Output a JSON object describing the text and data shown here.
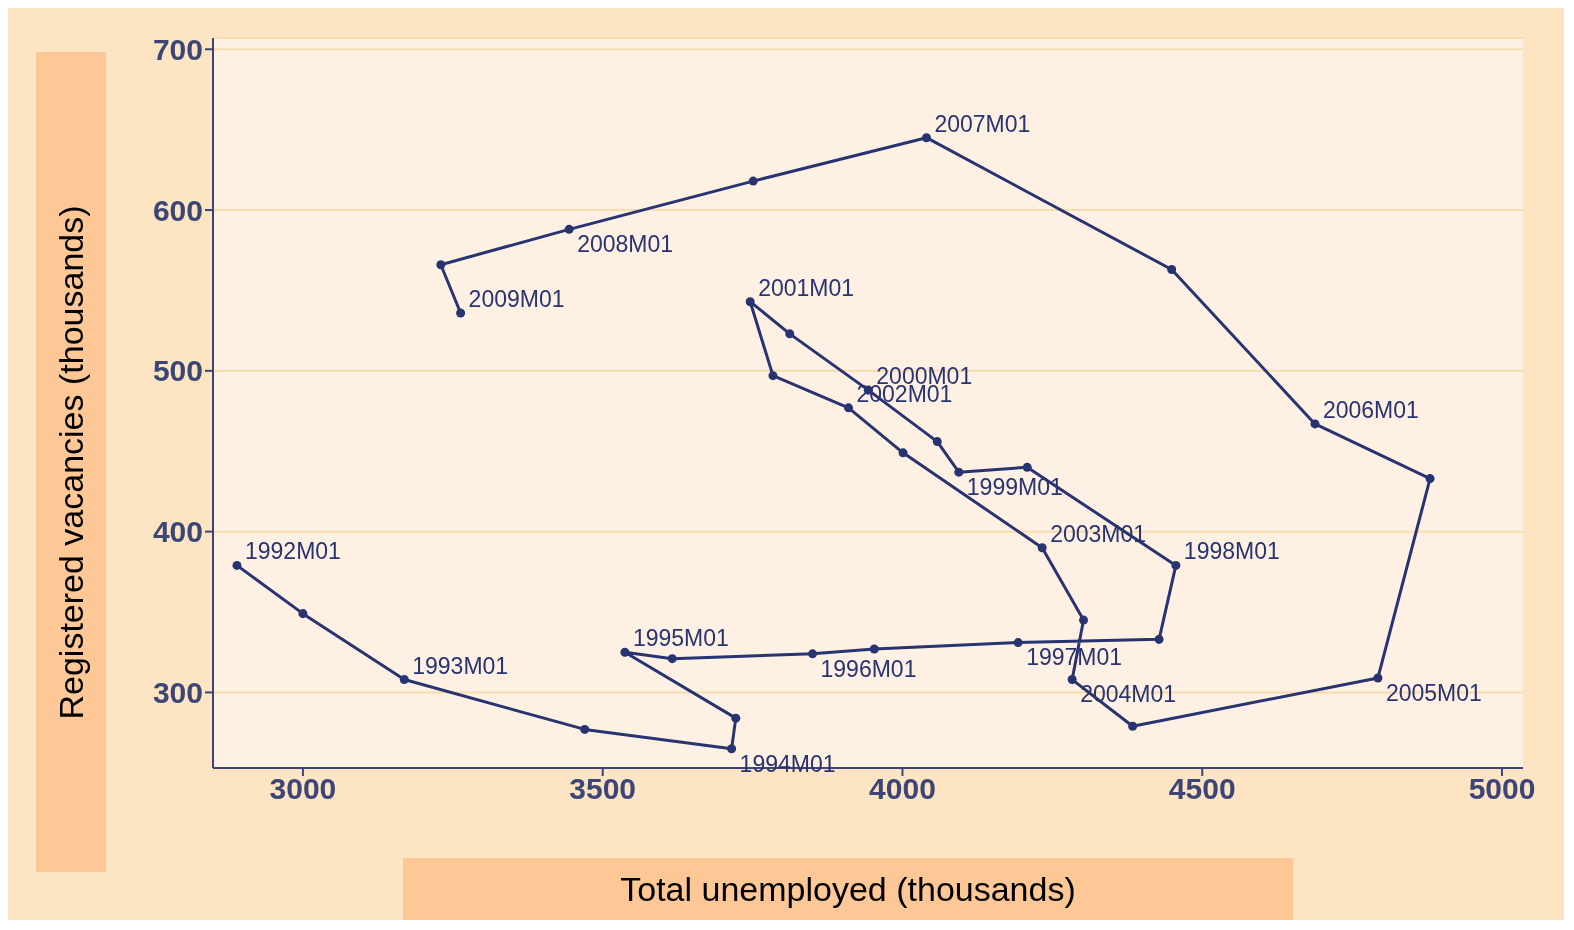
{
  "chart_data": {
    "type": "line",
    "xlabel": "Total unemployed (thousands)",
    "ylabel": "Registered vacancies (thousands)",
    "x": [
      2890,
      3000,
      3169,
      3470,
      3715,
      3722,
      3537,
      3616,
      3850,
      3953,
      4193,
      4428,
      4456,
      4208,
      4094,
      4058,
      3943,
      3812,
      3746,
      3784,
      3910,
      4001,
      4233,
      4302,
      4283,
      4384,
      4793,
      4880,
      4688,
      4449,
      4040,
      3751,
      3444,
      3230,
      3263
    ],
    "values": [
      379,
      349,
      308,
      277,
      265,
      284,
      325,
      321,
      324,
      327,
      331,
      333,
      379,
      440,
      437,
      456,
      488,
      523,
      543,
      497,
      477,
      449,
      390,
      345,
      308,
      279,
      309,
      433,
      467,
      563,
      645,
      618,
      588,
      566,
      536
    ],
    "color": "#283371",
    "marker": "circle",
    "line_style": "solid",
    "xlim": [
      2850,
      5035
    ],
    "ylim": [
      253,
      707
    ],
    "xticks": [
      3000,
      3500,
      4000,
      4500,
      5000
    ],
    "yticks": [
      300,
      400,
      500,
      600,
      700
    ],
    "grid": "y",
    "annotations": [
      {
        "text": "1992M01",
        "x": 2890,
        "y": 379
      },
      {
        "text": "1993M01",
        "x": 3169,
        "y": 308
      },
      {
        "text": "1994M01",
        "x": 3715,
        "y": 265
      },
      {
        "text": "1995M01",
        "x": 3537,
        "y": 325
      },
      {
        "text": "1996M01",
        "x": 3850,
        "y": 324
      },
      {
        "text": "1997M01",
        "x": 4193,
        "y": 331
      },
      {
        "text": "1998M01",
        "x": 4456,
        "y": 379
      },
      {
        "text": "1999M01",
        "x": 4094,
        "y": 437
      },
      {
        "text": "2000M01",
        "x": 3943,
        "y": 488
      },
      {
        "text": "2001M01",
        "x": 3746,
        "y": 543
      },
      {
        "text": "2002M01",
        "x": 3910,
        "y": 477
      },
      {
        "text": "2003M01",
        "x": 4233,
        "y": 390
      },
      {
        "text": "2004M01",
        "x": 4283,
        "y": 308
      },
      {
        "text": "2005M01",
        "x": 4793,
        "y": 309
      },
      {
        "text": "2006M01",
        "x": 4688,
        "y": 467
      },
      {
        "text": "2007M01",
        "x": 4040,
        "y": 645
      },
      {
        "text": "2008M01",
        "x": 3444,
        "y": 588
      },
      {
        "text": "2009M01",
        "x": 3263,
        "y": 536
      }
    ]
  }
}
